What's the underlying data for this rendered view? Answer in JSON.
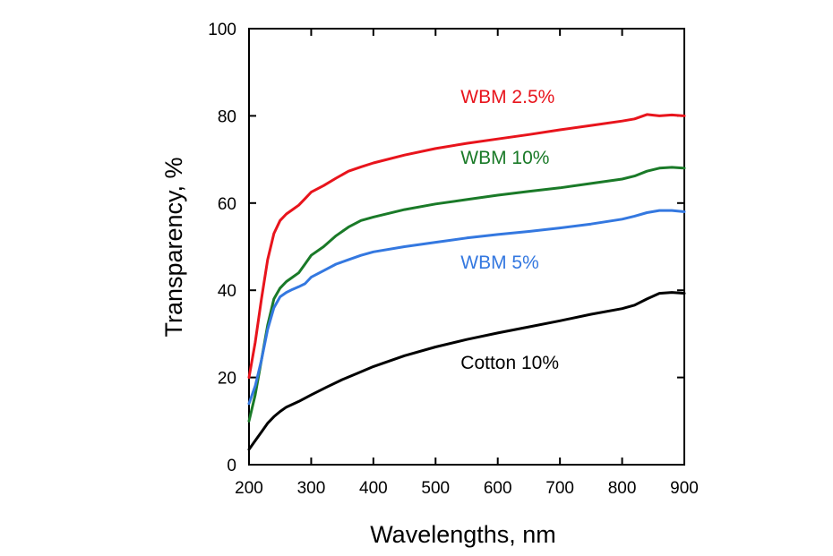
{
  "chart_data": {
    "type": "line",
    "title": "",
    "xlabel": "Wavelengths, nm",
    "ylabel": "Transparency, %",
    "xlim": [
      200,
      900
    ],
    "ylim": [
      0,
      100
    ],
    "xticks": [
      200,
      300,
      400,
      500,
      600,
      700,
      800,
      900
    ],
    "yticks": [
      0,
      20,
      40,
      60,
      80,
      100
    ],
    "xtick_labels": [
      "200",
      "300",
      "400",
      "500",
      "600",
      "700",
      "800",
      "900"
    ],
    "ytick_labels": [
      "0",
      "20",
      "40",
      "60",
      "80",
      "100"
    ],
    "grid": false,
    "legend": "inline labels beside each curve",
    "series": [
      {
        "name": "WBM 2.5%",
        "label": "WBM 2.5%",
        "color": "#e8141c",
        "label_at": [
          500,
          83
        ],
        "points": [
          [
            200,
            20
          ],
          [
            210,
            28
          ],
          [
            220,
            38
          ],
          [
            230,
            47
          ],
          [
            240,
            53
          ],
          [
            250,
            56
          ],
          [
            260,
            57.5
          ],
          [
            270,
            58.5
          ],
          [
            280,
            59.5
          ],
          [
            290,
            61
          ],
          [
            300,
            62.5
          ],
          [
            320,
            64
          ],
          [
            340,
            65.7
          ],
          [
            360,
            67.3
          ],
          [
            380,
            68.3
          ],
          [
            400,
            69.2
          ],
          [
            450,
            71
          ],
          [
            500,
            72.5
          ],
          [
            550,
            73.7
          ],
          [
            600,
            74.7
          ],
          [
            650,
            75.7
          ],
          [
            700,
            76.8
          ],
          [
            750,
            77.8
          ],
          [
            800,
            78.8
          ],
          [
            820,
            79.3
          ],
          [
            840,
            80.3
          ],
          [
            860,
            80
          ],
          [
            880,
            80.2
          ],
          [
            900,
            80
          ]
        ]
      },
      {
        "name": "WBM 10%",
        "label": "WBM 10%",
        "color": "#1a7a28",
        "label_at": [
          500,
          69
        ],
        "points": [
          [
            200,
            10
          ],
          [
            210,
            16
          ],
          [
            220,
            24
          ],
          [
            230,
            32
          ],
          [
            240,
            38
          ],
          [
            250,
            40.5
          ],
          [
            260,
            42
          ],
          [
            270,
            43
          ],
          [
            280,
            44
          ],
          [
            290,
            46
          ],
          [
            300,
            48
          ],
          [
            320,
            50
          ],
          [
            340,
            52.5
          ],
          [
            360,
            54.5
          ],
          [
            380,
            56
          ],
          [
            400,
            56.8
          ],
          [
            450,
            58.5
          ],
          [
            500,
            59.8
          ],
          [
            550,
            60.8
          ],
          [
            600,
            61.8
          ],
          [
            650,
            62.7
          ],
          [
            700,
            63.5
          ],
          [
            750,
            64.5
          ],
          [
            800,
            65.5
          ],
          [
            820,
            66.2
          ],
          [
            840,
            67.3
          ],
          [
            860,
            68
          ],
          [
            880,
            68.2
          ],
          [
            900,
            68
          ]
        ]
      },
      {
        "name": "WBM 5%",
        "label": "WBM 5%",
        "color": "#3478e0",
        "label_at": [
          500,
          45
        ],
        "points": [
          [
            200,
            14
          ],
          [
            210,
            18
          ],
          [
            220,
            24
          ],
          [
            230,
            31
          ],
          [
            240,
            36
          ],
          [
            250,
            38.5
          ],
          [
            260,
            39.5
          ],
          [
            270,
            40.2
          ],
          [
            280,
            40.8
          ],
          [
            290,
            41.5
          ],
          [
            300,
            43
          ],
          [
            320,
            44.5
          ],
          [
            340,
            46
          ],
          [
            360,
            47
          ],
          [
            380,
            48
          ],
          [
            400,
            48.8
          ],
          [
            450,
            50
          ],
          [
            500,
            51
          ],
          [
            550,
            52
          ],
          [
            600,
            52.8
          ],
          [
            650,
            53.5
          ],
          [
            700,
            54.3
          ],
          [
            750,
            55.2
          ],
          [
            800,
            56.3
          ],
          [
            820,
            57
          ],
          [
            840,
            57.8
          ],
          [
            860,
            58.3
          ],
          [
            880,
            58.3
          ],
          [
            900,
            58
          ]
        ]
      },
      {
        "name": "Cotton 10%",
        "label": "Cotton 10%",
        "color": "#000000",
        "label_at": [
          500,
          22
        ],
        "points": [
          [
            200,
            3.5
          ],
          [
            210,
            5.5
          ],
          [
            220,
            7.5
          ],
          [
            230,
            9.5
          ],
          [
            240,
            11
          ],
          [
            250,
            12.2
          ],
          [
            260,
            13.2
          ],
          [
            280,
            14.5
          ],
          [
            300,
            16
          ],
          [
            325,
            17.8
          ],
          [
            350,
            19.5
          ],
          [
            375,
            21
          ],
          [
            400,
            22.5
          ],
          [
            450,
            25
          ],
          [
            500,
            27
          ],
          [
            550,
            28.7
          ],
          [
            600,
            30.2
          ],
          [
            650,
            31.6
          ],
          [
            700,
            33
          ],
          [
            750,
            34.5
          ],
          [
            800,
            35.8
          ],
          [
            820,
            36.6
          ],
          [
            840,
            38
          ],
          [
            860,
            39.3
          ],
          [
            880,
            39.5
          ],
          [
            900,
            39.3
          ]
        ]
      }
    ]
  }
}
